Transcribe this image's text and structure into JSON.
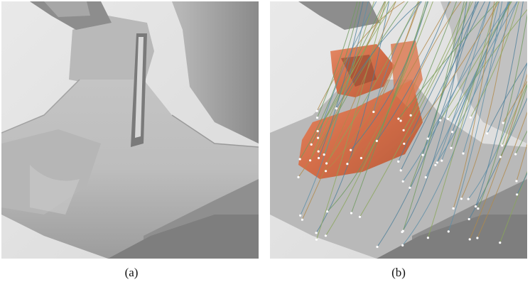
{
  "figure": {
    "panels": [
      {
        "id": "a",
        "caption": "(a)"
      },
      {
        "id": "b",
        "caption": "(b)"
      }
    ],
    "colors": {
      "background": "#e2e2e2",
      "surface_light": "#c9c9c9",
      "surface_dark": "#8f8f8f",
      "isosurface": "#d8734f",
      "streamline_green": "#6e9a5e",
      "streamline_blue": "#4e7f9a",
      "seed_point": "#ffffff"
    }
  }
}
